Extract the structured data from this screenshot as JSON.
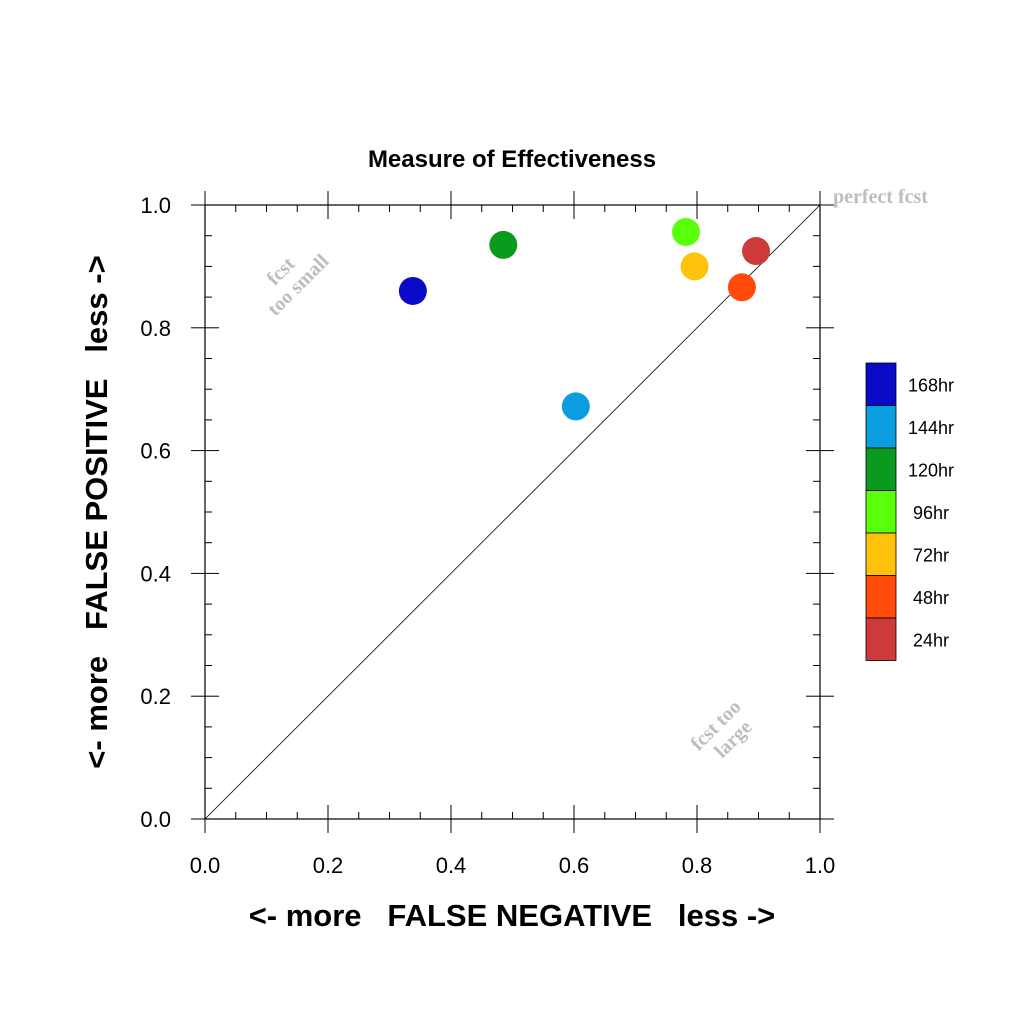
{
  "chart_data": {
    "type": "scatter",
    "title": "Measure of Effectiveness",
    "xlabel": "<- more   FALSE NEGATIVE   less ->",
    "ylabel": "<- more   FALSE POSITIVE   less ->",
    "xlim": [
      0.0,
      1.0
    ],
    "ylim": [
      0.0,
      1.0
    ],
    "xticks": [
      "0.0",
      "0.2",
      "0.4",
      "0.6",
      "0.8",
      "1.0"
    ],
    "yticks": [
      "0.0",
      "0.2",
      "0.4",
      "0.6",
      "0.8",
      "1.0"
    ],
    "grid": false,
    "reference_line": "diagonal y = x",
    "legend_position": "right",
    "annotations": {
      "perfect": "perfect fcst",
      "too_small": [
        "fcst",
        "too small"
      ],
      "too_large": [
        "fcst too",
        "large"
      ]
    },
    "series": [
      {
        "name": "168hr",
        "color": "#0a0ac8",
        "x": [
          0.338
        ],
        "y": [
          0.86
        ]
      },
      {
        "name": "144hr",
        "color": "#0a9ee0",
        "x": [
          0.603
        ],
        "y": [
          0.672
        ]
      },
      {
        "name": "120hr",
        "color": "#0a9a1e",
        "x": [
          0.485
        ],
        "y": [
          0.935
        ]
      },
      {
        "name": "96hr",
        "color": "#5aff0a",
        "x": [
          0.782
        ],
        "y": [
          0.956
        ]
      },
      {
        "name": "72hr",
        "color": "#ffc20a",
        "x": [
          0.796
        ],
        "y": [
          0.9
        ]
      },
      {
        "name": "48hr",
        "color": "#ff4a0a",
        "x": [
          0.873
        ],
        "y": [
          0.866
        ]
      },
      {
        "name": "24hr",
        "color": "#cc3a3a",
        "x": [
          0.896
        ],
        "y": [
          0.925
        ]
      }
    ]
  }
}
